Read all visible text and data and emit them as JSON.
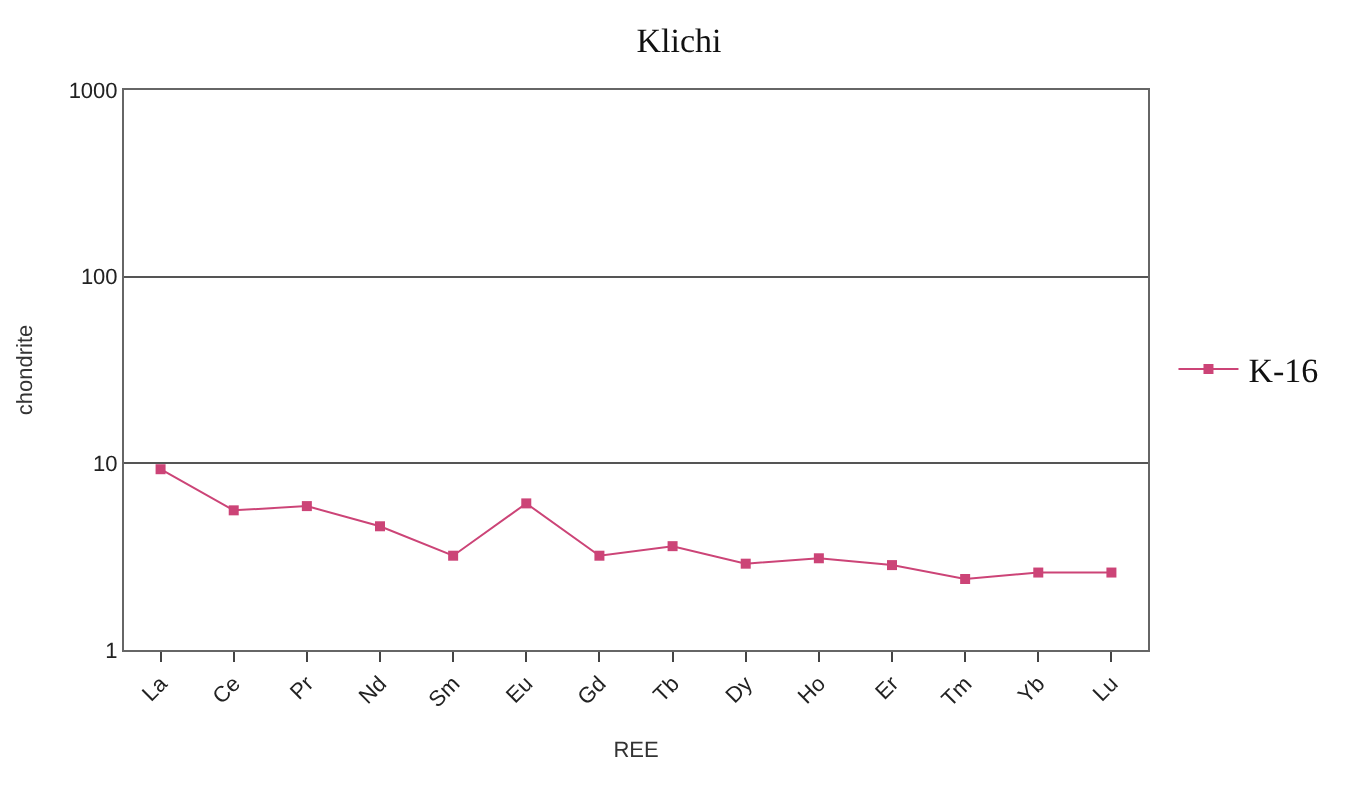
{
  "chart_data": {
    "type": "line",
    "title": "Klichi",
    "xlabel": "REE",
    "ylabel": "chondrite",
    "categories": [
      "La",
      "Ce",
      "Pr",
      "Nd",
      "Sm",
      "Eu",
      "Gd",
      "Tb",
      "Dy",
      "Ho",
      "Er",
      "Tm",
      "Yb",
      "Lu"
    ],
    "series": [
      {
        "name": "K-16",
        "color": "#cc4477",
        "values": [
          9.3,
          5.6,
          5.9,
          4.6,
          3.2,
          6.1,
          3.2,
          3.6,
          2.9,
          3.1,
          2.85,
          2.4,
          2.6,
          2.6
        ]
      }
    ],
    "log": true,
    "ylim": [
      1,
      1000
    ],
    "yticks": [
      1,
      10,
      100,
      1000
    ],
    "grid": "y",
    "legend": "right",
    "marker": "square",
    "line_style": "solid"
  }
}
